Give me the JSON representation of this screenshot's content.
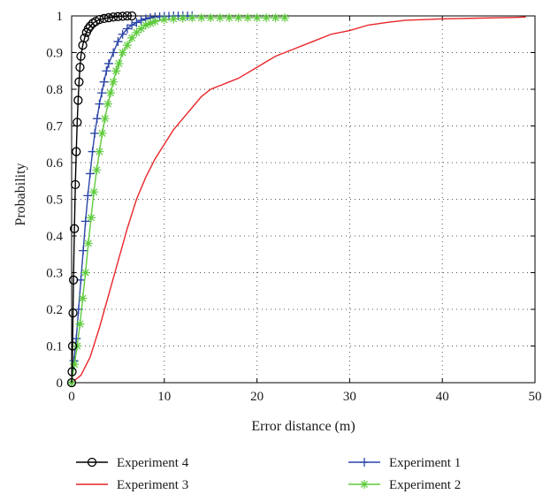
{
  "chart_data": {
    "type": "line",
    "title": "",
    "xlabel": "Error distance (m)",
    "ylabel": "Probability",
    "xlim": [
      0,
      50
    ],
    "ylim": [
      0,
      1
    ],
    "xticks": [
      "0",
      "10",
      "20",
      "30",
      "40",
      "50"
    ],
    "yticks": [
      "0",
      "0.1",
      "0.2",
      "0.3",
      "0.4",
      "0.5",
      "0.6",
      "0.7",
      "0.8",
      "0.9",
      "1"
    ],
    "grid": true,
    "legend_position": "below",
    "series": [
      {
        "name": "Experiment 4",
        "color": "#000000",
        "marker": "circle",
        "x": [
          0,
          0.05,
          0.1,
          0.15,
          0.2,
          0.3,
          0.4,
          0.5,
          0.6,
          0.7,
          0.8,
          0.9,
          1.0,
          1.2,
          1.4,
          1.6,
          1.8,
          2.0,
          2.3,
          2.6,
          3.0,
          3.5,
          4.0,
          4.5,
          5.0,
          5.5,
          6.0,
          6.5
        ],
        "y": [
          0,
          0.03,
          0.1,
          0.19,
          0.28,
          0.42,
          0.54,
          0.63,
          0.71,
          0.77,
          0.82,
          0.86,
          0.89,
          0.92,
          0.94,
          0.955,
          0.965,
          0.972,
          0.98,
          0.985,
          0.99,
          0.993,
          0.995,
          0.997,
          0.998,
          0.999,
          1.0,
          1.0
        ]
      },
      {
        "name": "Experiment 3",
        "color": "#e8262a",
        "marker": "none",
        "x": [
          0,
          1,
          2,
          3,
          4,
          5,
          6,
          7,
          8,
          9,
          10,
          11,
          12,
          13,
          14,
          15,
          16,
          17,
          18,
          20,
          22,
          24,
          26,
          28,
          30,
          32,
          34,
          36,
          38,
          40,
          42,
          44,
          46,
          48,
          49
        ],
        "y": [
          0,
          0.02,
          0.07,
          0.15,
          0.24,
          0.33,
          0.42,
          0.5,
          0.56,
          0.61,
          0.65,
          0.69,
          0.72,
          0.75,
          0.78,
          0.8,
          0.81,
          0.82,
          0.83,
          0.86,
          0.89,
          0.91,
          0.93,
          0.95,
          0.96,
          0.975,
          0.982,
          0.988,
          0.99,
          0.992,
          0.993,
          0.994,
          0.995,
          0.996,
          0.997
        ]
      },
      {
        "name": "Experiment 1",
        "color": "#2b45a8",
        "marker": "plus",
        "x": [
          0,
          0.25,
          0.5,
          0.75,
          1.0,
          1.25,
          1.5,
          1.75,
          2.0,
          2.25,
          2.5,
          2.75,
          3.0,
          3.25,
          3.5,
          3.75,
          4.0,
          4.5,
          5.0,
          5.5,
          6.0,
          6.5,
          7.0,
          7.5,
          8.0,
          8.5,
          9.0,
          9.5,
          10.0,
          10.5,
          11.0,
          11.5,
          12.0,
          12.5,
          13.0
        ],
        "y": [
          0,
          0.06,
          0.12,
          0.2,
          0.28,
          0.36,
          0.44,
          0.51,
          0.57,
          0.63,
          0.68,
          0.72,
          0.76,
          0.79,
          0.82,
          0.85,
          0.87,
          0.9,
          0.93,
          0.95,
          0.965,
          0.975,
          0.982,
          0.988,
          0.992,
          0.995,
          0.997,
          0.998,
          0.999,
          0.999,
          1.0,
          1.0,
          1.0,
          1.0,
          1.0
        ]
      },
      {
        "name": "Experiment 2",
        "color": "#5ecb3c",
        "marker": "asterisk",
        "x": [
          0,
          0.3,
          0.6,
          0.9,
          1.2,
          1.5,
          1.8,
          2.1,
          2.4,
          2.7,
          3.0,
          3.3,
          3.6,
          3.9,
          4.2,
          4.5,
          4.8,
          5.1,
          5.5,
          6.0,
          6.5,
          7.0,
          7.5,
          8.0,
          8.5,
          9.0,
          10,
          11,
          12,
          13,
          14,
          15,
          16,
          17,
          18,
          19,
          20,
          21,
          22,
          23
        ],
        "y": [
          0,
          0.05,
          0.1,
          0.16,
          0.23,
          0.3,
          0.38,
          0.45,
          0.52,
          0.58,
          0.63,
          0.68,
          0.72,
          0.76,
          0.79,
          0.82,
          0.85,
          0.87,
          0.9,
          0.92,
          0.94,
          0.955,
          0.965,
          0.975,
          0.98,
          0.985,
          0.99,
          0.992,
          0.994,
          0.995,
          0.995,
          0.995,
          0.995,
          0.995,
          0.995,
          0.995,
          0.995,
          0.995,
          0.995,
          0.995
        ]
      }
    ],
    "legend": [
      {
        "series": 0,
        "label": "Experiment 4"
      },
      {
        "series": 2,
        "label": "Experiment 1"
      },
      {
        "series": 1,
        "label": "Experiment 3"
      },
      {
        "series": 3,
        "label": "Experiment 2"
      }
    ]
  }
}
